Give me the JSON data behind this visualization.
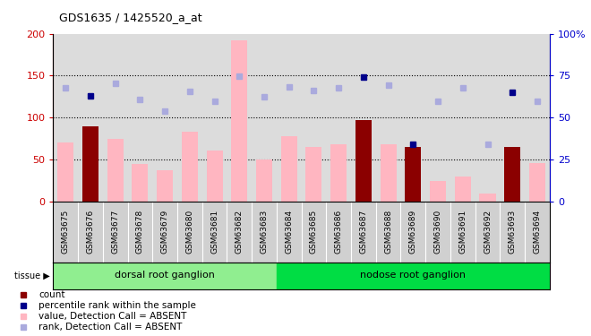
{
  "title": "GDS1635 / 1425520_a_at",
  "samples": [
    "GSM63675",
    "GSM63676",
    "GSM63677",
    "GSM63678",
    "GSM63679",
    "GSM63680",
    "GSM63681",
    "GSM63682",
    "GSM63683",
    "GSM63684",
    "GSM63685",
    "GSM63686",
    "GSM63687",
    "GSM63688",
    "GSM63689",
    "GSM63690",
    "GSM63691",
    "GSM63692",
    "GSM63693",
    "GSM63694"
  ],
  "pink_bars": [
    70,
    null,
    75,
    45,
    37,
    83,
    61,
    192,
    50,
    78,
    65,
    68,
    null,
    68,
    null,
    25,
    30,
    10,
    null,
    46
  ],
  "red_bars": [
    null,
    90,
    null,
    null,
    null,
    null,
    null,
    null,
    null,
    null,
    null,
    null,
    97,
    null,
    65,
    null,
    null,
    null,
    65,
    null
  ],
  "blue_dots": [
    null,
    126,
    null,
    null,
    null,
    null,
    null,
    null,
    null,
    null,
    null,
    null,
    148,
    null,
    68,
    null,
    null,
    null,
    130,
    null
  ],
  "lightblue_dots": [
    136,
    null,
    141,
    122,
    108,
    131,
    119,
    149,
    125,
    137,
    132,
    136,
    null,
    139,
    null,
    120,
    136,
    68,
    null,
    120
  ],
  "dorsal_count": 9,
  "nodose_count": 11,
  "tissue_label1": "dorsal root ganglion",
  "tissue_label2": "nodose root ganglion",
  "ylim_left": [
    0,
    200
  ],
  "ylim_right": [
    0,
    100
  ],
  "yticks_left": [
    0,
    50,
    100,
    150,
    200
  ],
  "yticks_right": [
    0,
    25,
    50,
    75,
    100
  ],
  "color_red_bar": "#8B0000",
  "color_pink_bar": "#FFB6C1",
  "color_blue_dot": "#00008B",
  "color_lightblue_dot": "#AAAADD",
  "color_dorsal": "#90EE90",
  "color_nodose": "#00DD44",
  "bg_plot": "#DCDCDC",
  "right_axis_color": "#0000CC",
  "left_axis_color": "#CC0000",
  "xticklabel_bg": "#D0D0D0",
  "legend_items": [
    [
      "#8B0000",
      "count"
    ],
    [
      "#00008B",
      "percentile rank within the sample"
    ],
    [
      "#FFB6C1",
      "value, Detection Call = ABSENT"
    ],
    [
      "#AAAADD",
      "rank, Detection Call = ABSENT"
    ]
  ]
}
